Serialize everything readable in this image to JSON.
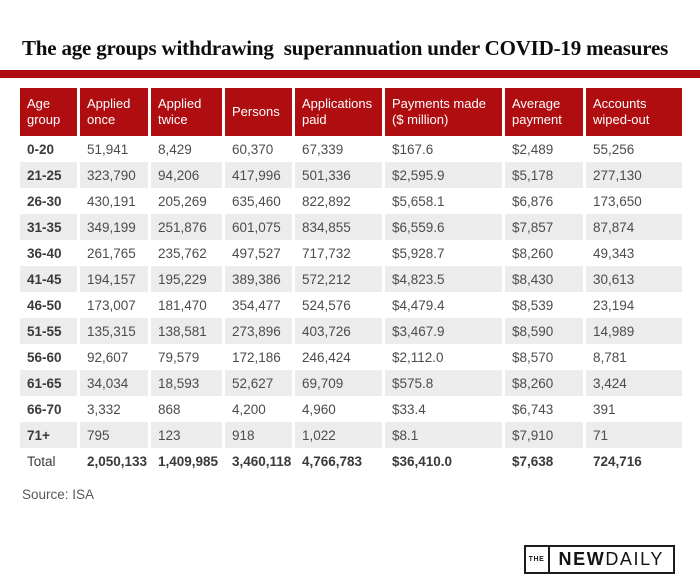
{
  "title": "The age groups withdrawing  superannuation under COVID-19 measures",
  "colors": {
    "brand_red": "#b00d11",
    "row_alt_gray": "#ececec",
    "header_text": "#ffffff",
    "body_text": "#4c4c4c"
  },
  "table": {
    "columns": [
      "Age group",
      "Applied once",
      "Applied twice",
      "Persons",
      "Applications paid",
      "Payments made ($ million)",
      "Average payment",
      "Accounts wiped-out"
    ],
    "rows": [
      [
        "0-20",
        "51,941",
        "8,429",
        "60,370",
        "67,339",
        "$167.6",
        "$2,489",
        "55,256"
      ],
      [
        "21-25",
        "323,790",
        "94,206",
        "417,996",
        "501,336",
        "$2,595.9",
        "$5,178",
        "277,130"
      ],
      [
        "26-30",
        "430,191",
        "205,269",
        "635,460",
        "822,892",
        "$5,658.1",
        "$6,876",
        "173,650"
      ],
      [
        "31-35",
        "349,199",
        "251,876",
        "601,075",
        "834,855",
        "$6,559.6",
        "$7,857",
        "87,874"
      ],
      [
        "36-40",
        "261,765",
        "235,762",
        "497,527",
        "717,732",
        "$5,928.7",
        "$8,260",
        "49,343"
      ],
      [
        "41-45",
        "194,157",
        "195,229",
        "389,386",
        "572,212",
        "$4,823.5",
        "$8,430",
        "30,613"
      ],
      [
        "46-50",
        "173,007",
        "181,470",
        "354,477",
        "524,576",
        "$4,479.4",
        "$8,539",
        "23,194"
      ],
      [
        "51-55",
        "135,315",
        "138,581",
        "273,896",
        "403,726",
        "$3,467.9",
        "$8,590",
        "14,989"
      ],
      [
        "56-60",
        "92,607",
        "79,579",
        "172,186",
        "246,424",
        "$2,112.0",
        "$8,570",
        "8,781"
      ],
      [
        "61-65",
        "34,034",
        "18,593",
        "52,627",
        "69,709",
        "$575.8",
        "$8,260",
        "3,424"
      ],
      [
        "66-70",
        "3,332",
        "868",
        "4,200",
        "4,960",
        "$33.4",
        "$6,743",
        "391"
      ],
      [
        "71+",
        "795",
        "123",
        "918",
        "1,022",
        "$8.1",
        "$7,910",
        "71"
      ]
    ],
    "total_row": [
      "Total",
      "2,050,133",
      "1,409,985",
      "3,460,118",
      "4,766,783",
      "$36,410.0",
      "$7,638",
      "724,716"
    ]
  },
  "source": "Source: ISA",
  "logo": {
    "the": "THE",
    "new": "NEW",
    "daily": "DAILY"
  },
  "chart_data": {
    "type": "table",
    "title": "The age groups withdrawing superannuation under COVID-19 measures",
    "columns": [
      "Age group",
      "Applied once",
      "Applied twice",
      "Persons",
      "Applications paid",
      "Payments made ($ million)",
      "Average payment",
      "Accounts wiped-out"
    ],
    "rows": [
      {
        "age_group": "0-20",
        "applied_once": 51941,
        "applied_twice": 8429,
        "persons": 60370,
        "applications_paid": 67339,
        "payments_made_millions": 167.6,
        "average_payment": 2489,
        "accounts_wiped_out": 55256
      },
      {
        "age_group": "21-25",
        "applied_once": 323790,
        "applied_twice": 94206,
        "persons": 417996,
        "applications_paid": 501336,
        "payments_made_millions": 2595.9,
        "average_payment": 5178,
        "accounts_wiped_out": 277130
      },
      {
        "age_group": "26-30",
        "applied_once": 430191,
        "applied_twice": 205269,
        "persons": 635460,
        "applications_paid": 822892,
        "payments_made_millions": 5658.1,
        "average_payment": 6876,
        "accounts_wiped_out": 173650
      },
      {
        "age_group": "31-35",
        "applied_once": 349199,
        "applied_twice": 251876,
        "persons": 601075,
        "applications_paid": 834855,
        "payments_made_millions": 6559.6,
        "average_payment": 7857,
        "accounts_wiped_out": 87874
      },
      {
        "age_group": "36-40",
        "applied_once": 261765,
        "applied_twice": 235762,
        "persons": 497527,
        "applications_paid": 717732,
        "payments_made_millions": 5928.7,
        "average_payment": 8260,
        "accounts_wiped_out": 49343
      },
      {
        "age_group": "41-45",
        "applied_once": 194157,
        "applied_twice": 195229,
        "persons": 389386,
        "applications_paid": 572212,
        "payments_made_millions": 4823.5,
        "average_payment": 8430,
        "accounts_wiped_out": 30613
      },
      {
        "age_group": "46-50",
        "applied_once": 173007,
        "applied_twice": 181470,
        "persons": 354477,
        "applications_paid": 524576,
        "payments_made_millions": 4479.4,
        "average_payment": 8539,
        "accounts_wiped_out": 23194
      },
      {
        "age_group": "51-55",
        "applied_once": 135315,
        "applied_twice": 138581,
        "persons": 273896,
        "applications_paid": 403726,
        "payments_made_millions": 3467.9,
        "average_payment": 8590,
        "accounts_wiped_out": 14989
      },
      {
        "age_group": "56-60",
        "applied_once": 92607,
        "applied_twice": 79579,
        "persons": 172186,
        "applications_paid": 246424,
        "payments_made_millions": 2112.0,
        "average_payment": 8570,
        "accounts_wiped_out": 8781
      },
      {
        "age_group": "61-65",
        "applied_once": 34034,
        "applied_twice": 18593,
        "persons": 52627,
        "applications_paid": 69709,
        "payments_made_millions": 575.8,
        "average_payment": 8260,
        "accounts_wiped_out": 3424
      },
      {
        "age_group": "66-70",
        "applied_once": 3332,
        "applied_twice": 868,
        "persons": 4200,
        "applications_paid": 4960,
        "payments_made_millions": 33.4,
        "average_payment": 6743,
        "accounts_wiped_out": 391
      },
      {
        "age_group": "71+",
        "applied_once": 795,
        "applied_twice": 123,
        "persons": 918,
        "applications_paid": 1022,
        "payments_made_millions": 8.1,
        "average_payment": 7910,
        "accounts_wiped_out": 71
      }
    ],
    "total": {
      "age_group": "Total",
      "applied_once": 2050133,
      "applied_twice": 1409985,
      "persons": 3460118,
      "applications_paid": 4766783,
      "payments_made_millions": 36410.0,
      "average_payment": 7638,
      "accounts_wiped_out": 724716
    },
    "source": "ISA"
  }
}
